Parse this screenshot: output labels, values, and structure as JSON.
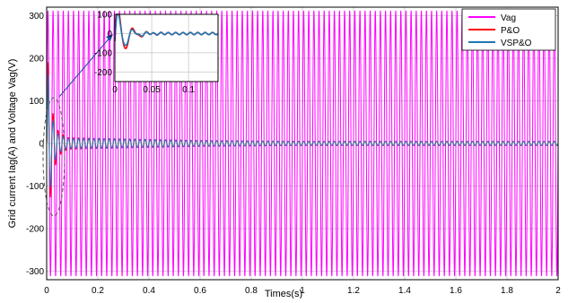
{
  "chart_data": [
    {
      "type": "line",
      "xlabel": "Times(s)",
      "ylabel": "Grid current Iag(A) and Voltage Vag(V)",
      "xlim": [
        0,
        2
      ],
      "ylim": [
        -320,
        320
      ],
      "x_ticks": [
        0,
        0.2,
        0.4,
        0.6,
        0.8,
        1,
        1.2,
        1.4,
        1.6,
        1.8,
        2
      ],
      "x_tick_labels": [
        "0",
        "0.2",
        "0.4",
        "0.6",
        "0.8",
        "1",
        "1.2",
        "1.4",
        "1.6",
        "1.8",
        "2"
      ],
      "y_ticks": [
        -300,
        -200,
        -100,
        0,
        100,
        200,
        300
      ],
      "y_tick_labels": [
        "-300",
        "-200",
        "-100",
        "0",
        "100",
        "200",
        "300"
      ],
      "grid": true,
      "legend_position": "top-right",
      "series": [
        {
          "name": "Vag",
          "color": "#ff00ff",
          "waveform": "sine",
          "amplitude": 311,
          "frequency_hz": 50,
          "offset": 0
        },
        {
          "name": "P&O",
          "color": "#ff0000",
          "waveform": "sine",
          "frequency_hz": 50,
          "offset": 0,
          "amplitude_points": [
            [
              0,
              0
            ],
            [
              0.006,
              200
            ],
            [
              0.02,
              80
            ],
            [
              0.045,
              30
            ],
            [
              0.08,
              14
            ],
            [
              0.2,
              12
            ],
            [
              0.6,
              7
            ],
            [
              1.0,
              5
            ],
            [
              2.0,
              5
            ]
          ]
        },
        {
          "name": "VSP&O",
          "color": "#1f77b4",
          "waveform": "sine",
          "frequency_hz": 50,
          "offset": 0,
          "amplitude_points": [
            [
              0,
              0
            ],
            [
              0.006,
              170
            ],
            [
              0.02,
              60
            ],
            [
              0.045,
              22
            ],
            [
              0.08,
              12
            ],
            [
              0.2,
              12
            ],
            [
              0.6,
              7
            ],
            [
              1.0,
              5
            ],
            [
              2.0,
              5
            ]
          ]
        }
      ]
    },
    {
      "type": "line",
      "role": "inset-zoom",
      "xlim": [
        0,
        0.14
      ],
      "ylim": [
        -250,
        100
      ],
      "x_ticks": [
        0,
        0.05,
        0.1
      ],
      "x_tick_labels": [
        "0",
        "0.05",
        "0.1"
      ],
      "y_ticks": [
        -200,
        -100,
        0,
        100
      ],
      "y_tick_labels": [
        "-200",
        "-100",
        "0",
        "100"
      ],
      "grid": true,
      "series": [
        {
          "name": "P&O",
          "color": "#ff0000",
          "waveform": "damped-sine",
          "offset": -40,
          "amplitude": 230,
          "frequency_hz": 50,
          "decay_s": 0.012,
          "ripple_amplitude": 6
        },
        {
          "name": "VSP&O",
          "color": "#1f77b4",
          "waveform": "damped-sine",
          "offset": -40,
          "amplitude": 200,
          "frequency_hz": 50,
          "decay_s": 0.011,
          "ripple_amplitude": 6
        }
      ]
    }
  ]
}
